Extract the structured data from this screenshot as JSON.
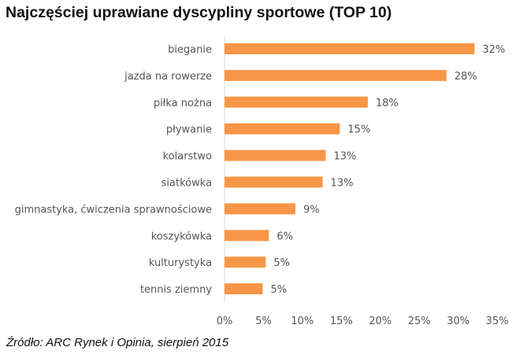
{
  "chart_data": {
    "type": "bar",
    "orientation": "horizontal",
    "title": "Najczęściej uprawiane dyscypliny sportowe (TOP 10)",
    "categories": [
      "bieganie",
      "jazda na rowerze",
      "piłka nożna",
      "pływanie",
      "kolarstwo",
      "siatkówka",
      "gimnastyka, ćwiczenia sprawnościowe",
      "koszykówka",
      "kulturystyka",
      "tennis ziemny"
    ],
    "values": [
      32.1,
      28.5,
      18.4,
      14.8,
      13.0,
      12.6,
      9.1,
      5.7,
      5.3,
      4.9
    ],
    "data_labels": [
      "32%",
      "28%",
      "18%",
      "15%",
      "13%",
      "13%",
      "9%",
      "6%",
      "5%",
      "5%"
    ],
    "xlim": [
      0,
      35
    ],
    "xticks": [
      0,
      5,
      10,
      15,
      20,
      25,
      30,
      35
    ],
    "xtick_labels": [
      "0%",
      "5%",
      "10%",
      "15%",
      "20%",
      "25%",
      "30%",
      "35%"
    ],
    "grid": false,
    "bar_color": "#F79646",
    "annotation": "Źródło: ARC Rynek i Opinia, sierpień 2015"
  }
}
